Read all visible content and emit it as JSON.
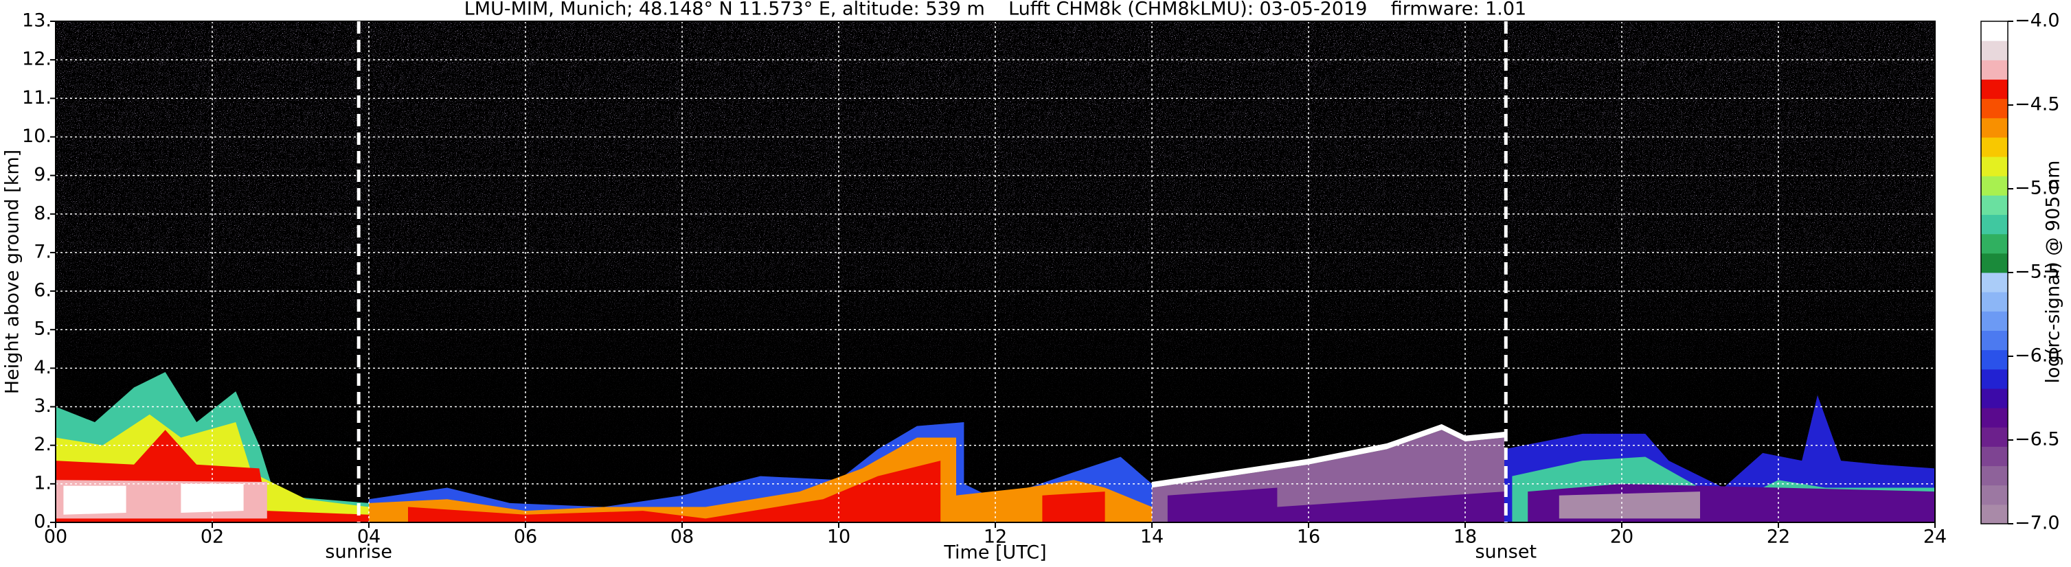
{
  "chart_data": {
    "type": "heatmap",
    "title": "LMU-MIM, Munich; 48.148° N 11.573° E, altitude: 539 m    Lufft CHM8k (CHM8kLMU): 03-05-2019    firmware: 1.01",
    "x_label": "Time [UTC]",
    "y_label": "Height above ground [km]",
    "colorbar_label": "log(rc-signal) @ 905 nm",
    "xlim": [
      0,
      24
    ],
    "xticks": [
      {
        "value": 0,
        "label": "00"
      },
      {
        "value": 2,
        "label": "02"
      },
      {
        "value": 4,
        "label": "04"
      },
      {
        "value": 6,
        "label": "06"
      },
      {
        "value": 8,
        "label": "08"
      },
      10,
      12,
      14,
      16,
      18,
      20,
      22,
      24
    ],
    "ylim": [
      0,
      13
    ],
    "yticks": [
      {
        "value": 0,
        "label": "0."
      },
      {
        "value": 1,
        "label": "1."
      },
      {
        "value": 2,
        "label": "2."
      },
      {
        "value": 3,
        "label": "3."
      },
      {
        "value": 4,
        "label": "4."
      },
      {
        "value": 5,
        "label": "5."
      },
      {
        "value": 6,
        "label": "6."
      },
      {
        "value": 7,
        "label": "7."
      },
      {
        "value": 8,
        "label": "8."
      },
      {
        "value": 9,
        "label": "9."
      },
      {
        "value": 10,
        "label": "10."
      },
      {
        "value": 11,
        "label": "11."
      },
      {
        "value": 12,
        "label": "12."
      },
      {
        "value": 13,
        "label": "13."
      }
    ],
    "clim": [
      -7,
      -4
    ],
    "cticks": [
      {
        "value": -7,
        "label": "−7.0"
      },
      {
        "value": -6.5,
        "label": "−6.5"
      },
      {
        "value": -6,
        "label": "−6.0"
      },
      {
        "value": -5.5,
        "label": "−5.5"
      },
      {
        "value": -5,
        "label": "−5.0"
      },
      {
        "value": -4.5,
        "label": "−4.5"
      },
      {
        "value": -4,
        "label": "−4.0"
      }
    ],
    "colorbar_colors": [
      "#a98aa8",
      "#9c78a2",
      "#8e629a",
      "#7e4492",
      "#6c208c",
      "#5a0a8e",
      "#3c0aa8",
      "#2222d2",
      "#2a52ea",
      "#4c7af0",
      "#6c9af4",
      "#8cb6f6",
      "#aaccf8",
      "#1a8a3a",
      "#30b060",
      "#40c8a0",
      "#6ae0a0",
      "#a8f050",
      "#e4f020",
      "#f8c800",
      "#f89000",
      "#f85000",
      "#f01000",
      "#f4b4b8",
      "#e8d8dc",
      "#ffffff"
    ],
    "grid": true,
    "annotations": [
      {
        "text": "sunrise",
        "x": 3.87
      },
      {
        "text": "sunset",
        "x": 18.52
      }
    ]
  }
}
